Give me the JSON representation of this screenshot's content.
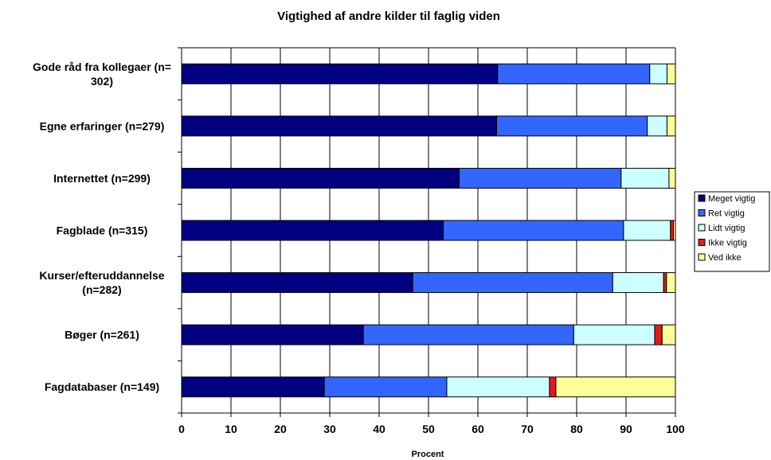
{
  "chart_data": {
    "type": "bar",
    "orientation": "horizontal",
    "stacked": true,
    "title": "Vigtighed af andre kilder til faglig viden",
    "xlabel": "Procent",
    "ylabel": "",
    "xlim": [
      0,
      100
    ],
    "x_ticks": [
      0,
      10,
      20,
      30,
      40,
      50,
      60,
      70,
      80,
      90,
      100
    ],
    "grid": "vertical",
    "legend_position": "right",
    "categories": [
      "Gode råd fra kollegaer (n= 302)",
      "Egne erfaringer (n=279)",
      "Internettet (n=299)",
      "Fagblade (n=315)",
      "Kurser/efteruddannelse (n=282)",
      "Bøger (n=261)",
      "Fagdatabaser (n=149)"
    ],
    "category_lines": [
      [
        "Gode råd fra kollegaer (n=",
        "302)"
      ],
      [
        "Egne erfaringer (n=279)"
      ],
      [
        "Internettet (n=299)"
      ],
      [
        "Fagblade (n=315)"
      ],
      [
        "Kurser/efteruddannelse",
        "(n=282)"
      ],
      [
        "Bøger (n=261)"
      ],
      [
        "Fagdatabaser (n=149)"
      ]
    ],
    "series": [
      {
        "name": "Meget vigtig",
        "color": "#000080",
        "values": [
          64,
          63.8,
          56.2,
          53,
          46.8,
          36.8,
          28.9
        ]
      },
      {
        "name": "Ret vigtig",
        "color": "#3366FF",
        "values": [
          30.8,
          30.5,
          32.8,
          36.5,
          40.5,
          42.6,
          24.8
        ]
      },
      {
        "name": "Lidt vigtig",
        "color": "#CCFFFF",
        "values": [
          3.5,
          4,
          9.7,
          9.5,
          10.3,
          16.4,
          20.8
        ]
      },
      {
        "name": "Ikke vigtig",
        "color": "#E31A1C",
        "values": [
          0,
          0,
          0,
          0.6,
          0.6,
          1.5,
          1.3
        ]
      },
      {
        "name": "Ved ikke",
        "color": "#FFFF99",
        "values": [
          1.7,
          1.7,
          1.3,
          0.4,
          1.8,
          2.7,
          24.2
        ]
      }
    ]
  }
}
